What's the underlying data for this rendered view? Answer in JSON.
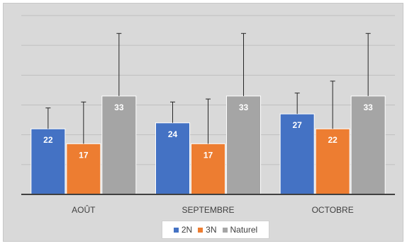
{
  "chart_data": {
    "type": "bar",
    "title": "",
    "xlabel": "",
    "ylabel": "",
    "categories": [
      "AOÛT",
      "SEPTEMBRE",
      "OCTOBRE"
    ],
    "series": [
      {
        "name": "2N",
        "color": "#4472c4",
        "values": [
          22,
          24,
          27
        ],
        "error_plus": [
          7,
          7,
          7
        ]
      },
      {
        "name": "3N",
        "color": "#ed7d31",
        "values": [
          17,
          17,
          22
        ],
        "error_plus": [
          14,
          15,
          16
        ]
      },
      {
        "name": "Naturel",
        "color": "#a5a5a5",
        "values": [
          33,
          33,
          33
        ],
        "error_plus": [
          21,
          21,
          21
        ]
      }
    ],
    "ylim": [
      0,
      60
    ],
    "gridlines": true,
    "legend_position": "bottom",
    "data_labels": true
  }
}
